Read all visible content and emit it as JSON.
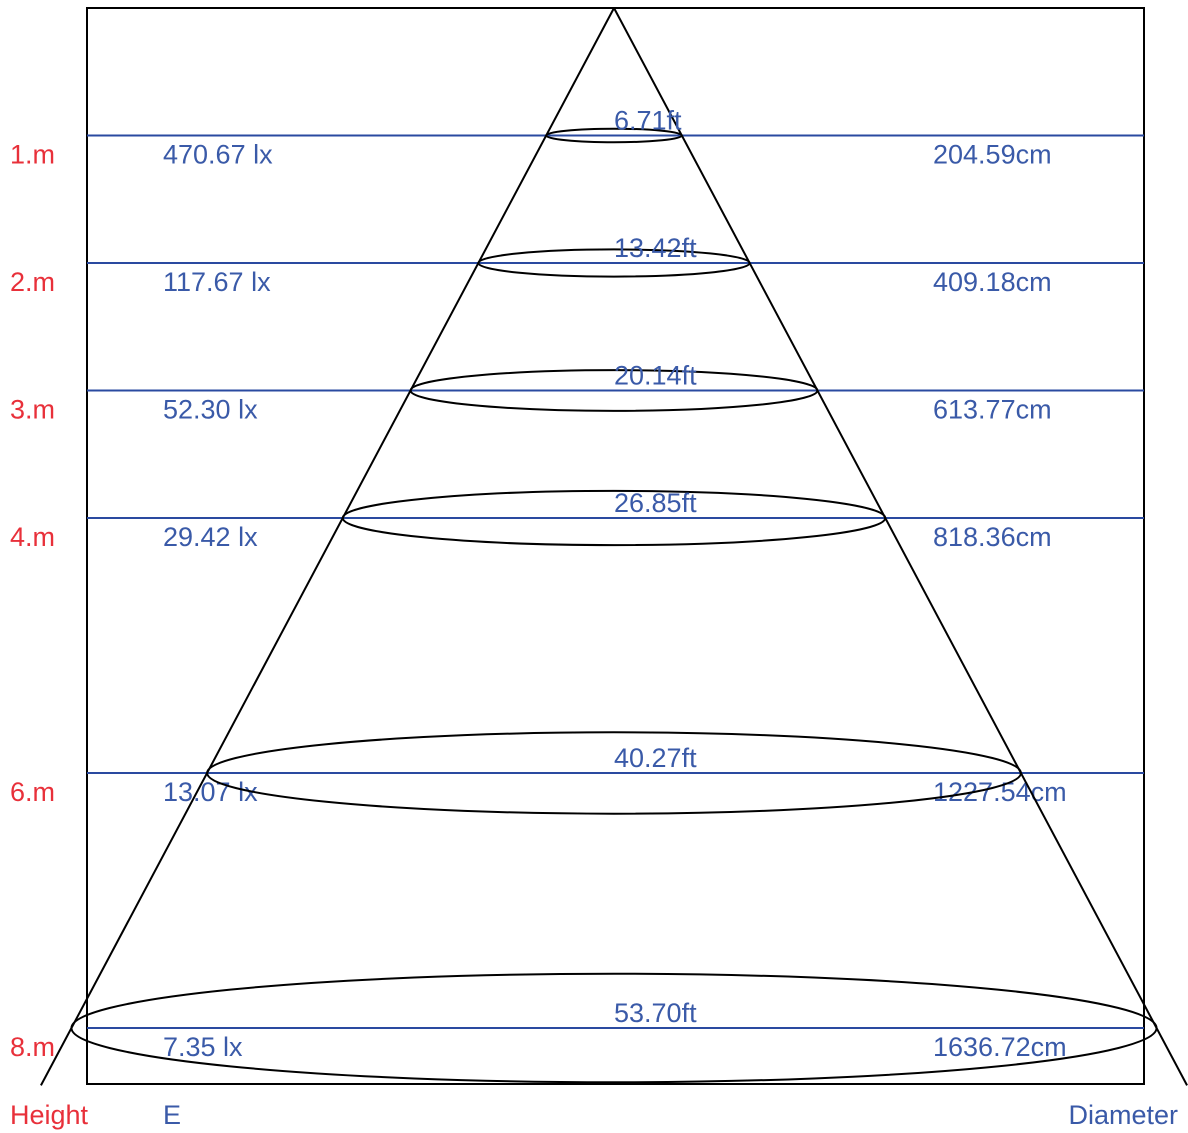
{
  "colors": {
    "height_label": "#e8303a",
    "value_label": "#3a5aa8",
    "level_line": "#2a4aa0",
    "frame": "#000000",
    "cone": "#000000",
    "background": "#ffffff"
  },
  "footer": {
    "height_header": "Height",
    "e_header": "E",
    "diameter_header": "Diameter"
  },
  "cone": {
    "max_height_m": 8.45,
    "half_angle_ratio": 1.0229
  },
  "levels": [
    {
      "height_m": 1,
      "height_label": "1.m",
      "illuminance": "470.67 lx",
      "diameter_cm": "204.59cm",
      "diameter_ft": "6.71ft"
    },
    {
      "height_m": 2,
      "height_label": "2.m",
      "illuminance": "117.67 lx",
      "diameter_cm": "409.18cm",
      "diameter_ft": "13.42ft"
    },
    {
      "height_m": 3,
      "height_label": "3.m",
      "illuminance": "52.30 lx",
      "diameter_cm": "613.77cm",
      "diameter_ft": "20.14ft"
    },
    {
      "height_m": 4,
      "height_label": "4.m",
      "illuminance": "29.42 lx",
      "diameter_cm": "818.36cm",
      "diameter_ft": "26.85ft"
    },
    {
      "height_m": 6,
      "height_label": "6.m",
      "illuminance": "13.07 lx",
      "diameter_cm": "1227.54cm",
      "diameter_ft": "40.27ft"
    },
    {
      "height_m": 8,
      "height_label": "8.m",
      "illuminance": "7.35 lx",
      "diameter_cm": "1636.72cm",
      "diameter_ft": "53.70ft"
    }
  ]
}
